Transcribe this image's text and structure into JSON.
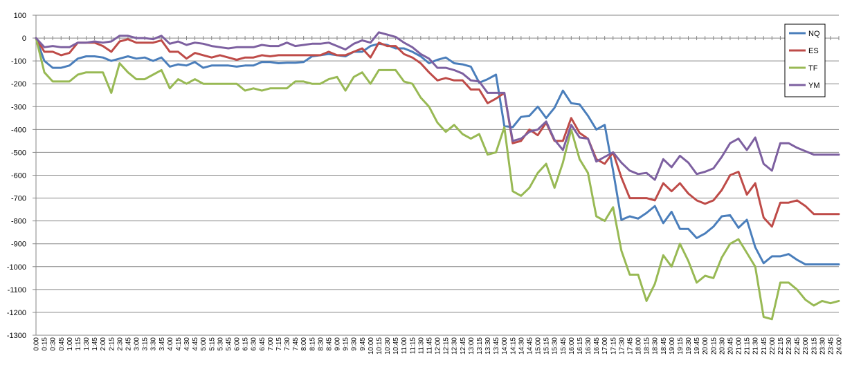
{
  "chart_data": {
    "type": "line",
    "title": "",
    "xlabel": "",
    "ylabel": "",
    "ylim": [
      -1300,
      100
    ],
    "y_ticks": [
      "100",
      "0",
      "-100",
      "-200",
      "-300",
      "-400",
      "-500",
      "-600",
      "-700",
      "-800",
      "-900",
      "-1000",
      "-1100",
      "-1200",
      "-1300"
    ],
    "grid": "horizontal",
    "legend_position": "right",
    "categories": [
      "0:00",
      "0:15",
      "0:30",
      "0:45",
      "1:00",
      "1:15",
      "1:30",
      "1:45",
      "2:00",
      "2:15",
      "2:30",
      "2:45",
      "3:00",
      "3:15",
      "3:30",
      "3:45",
      "4:00",
      "4:15",
      "4:30",
      "4:45",
      "5:00",
      "5:15",
      "5:30",
      "5:45",
      "6:00",
      "6:15",
      "6:30",
      "6:45",
      "7:00",
      "7:15",
      "7:30",
      "7:45",
      "8:00",
      "8:15",
      "8:30",
      "8:45",
      "9:00",
      "9:15",
      "9:30",
      "9:45",
      "10:00",
      "10:15",
      "10:30",
      "10:45",
      "11:00",
      "11:15",
      "11:30",
      "11:45",
      "12:00",
      "12:15",
      "12:30",
      "12:45",
      "13:00",
      "13:15",
      "13:30",
      "13:45",
      "14:00",
      "14:15",
      "14:30",
      "14:45",
      "15:00",
      "15:15",
      "15:30",
      "15:45",
      "16:00",
      "16:15",
      "16:30",
      "16:45",
      "17:00",
      "17:15",
      "17:30",
      "17:45",
      "18:00",
      "18:15",
      "18:30",
      "18:45",
      "19:00",
      "19:15",
      "19:30",
      "19:45",
      "20:00",
      "20:15",
      "20:30",
      "20:45",
      "21:00",
      "21:15",
      "21:30",
      "21:45",
      "22:00",
      "22:15",
      "22:30",
      "22:45",
      "23:00",
      "23:15",
      "23:30",
      "23:45",
      "24:00"
    ],
    "series": [
      {
        "name": "NQ",
        "color": "#4A7EBB",
        "values": [
          0,
          -100,
          -130,
          -130,
          -120,
          -90,
          -80,
          -80,
          -85,
          -100,
          -90,
          -80,
          -90,
          -85,
          -100,
          -85,
          -125,
          -115,
          -120,
          -105,
          -130,
          -120,
          -120,
          -120,
          -125,
          -120,
          -120,
          -105,
          -105,
          -110,
          -108,
          -108,
          -105,
          -80,
          -75,
          -70,
          -75,
          -80,
          -60,
          -60,
          -35,
          -25,
          -30,
          -45,
          -45,
          -60,
          -80,
          -110,
          -95,
          -85,
          -110,
          -115,
          -125,
          -195,
          -180,
          -160,
          -385,
          -390,
          -345,
          -340,
          -300,
          -350,
          -305,
          -230,
          -285,
          -290,
          -340,
          -400,
          -380,
          -580,
          -795,
          -780,
          -790,
          -765,
          -735,
          -810,
          -760,
          -835,
          -835,
          -875,
          -855,
          -825,
          -780,
          -775,
          -830,
          -795,
          -915,
          -985,
          -955,
          -955,
          -945,
          -970,
          -990,
          -990,
          -990,
          -990,
          -990
        ]
      },
      {
        "name": "ES",
        "color": "#BE4B48",
        "values": [
          0,
          -60,
          -60,
          -75,
          -65,
          -20,
          -20,
          -20,
          -35,
          -60,
          -15,
          -5,
          -20,
          -20,
          -20,
          -10,
          -60,
          -60,
          -90,
          -65,
          -75,
          -85,
          -75,
          -85,
          -95,
          -85,
          -85,
          -75,
          -80,
          -75,
          -75,
          -75,
          -75,
          -75,
          -75,
          -60,
          -75,
          -75,
          -60,
          -45,
          -85,
          -20,
          -35,
          -35,
          -70,
          -85,
          -110,
          -150,
          -185,
          -175,
          -185,
          -185,
          -225,
          -225,
          -285,
          -265,
          -240,
          -460,
          -450,
          -400,
          -425,
          -370,
          -450,
          -450,
          -350,
          -415,
          -440,
          -530,
          -550,
          -500,
          -610,
          -700,
          -700,
          -700,
          -710,
          -635,
          -670,
          -635,
          -680,
          -710,
          -725,
          -710,
          -665,
          -600,
          -585,
          -685,
          -635,
          -785,
          -825,
          -720,
          -720,
          -710,
          -735,
          -770,
          -770,
          -770,
          -770
        ]
      },
      {
        "name": "TF",
        "color": "#98B954",
        "values": [
          0,
          -150,
          -190,
          -190,
          -190,
          -160,
          -150,
          -150,
          -150,
          -240,
          -110,
          -150,
          -180,
          -180,
          -160,
          -140,
          -220,
          -180,
          -200,
          -180,
          -200,
          -200,
          -200,
          -200,
          -200,
          -230,
          -220,
          -230,
          -220,
          -220,
          -220,
          -190,
          -190,
          -200,
          -200,
          -180,
          -170,
          -230,
          -170,
          -150,
          -200,
          -140,
          -140,
          -140,
          -190,
          -200,
          -260,
          -300,
          -370,
          -410,
          -380,
          -420,
          -440,
          -420,
          -510,
          -500,
          -390,
          -670,
          -690,
          -655,
          -590,
          -550,
          -655,
          -545,
          -400,
          -530,
          -590,
          -780,
          -800,
          -740,
          -930,
          -1035,
          -1035,
          -1150,
          -1075,
          -950,
          -1000,
          -900,
          -975,
          -1070,
          -1040,
          -1050,
          -960,
          -900,
          -880,
          -940,
          -1000,
          -1220,
          -1230,
          -1070,
          -1070,
          -1100,
          -1145,
          -1170,
          -1150,
          -1160,
          -1150
        ]
      },
      {
        "name": "YM",
        "color": "#7D60A0",
        "values": [
          0,
          -40,
          -35,
          -40,
          -40,
          -20,
          -20,
          -15,
          -20,
          -15,
          10,
          10,
          0,
          0,
          -5,
          10,
          -25,
          -15,
          -30,
          -20,
          -25,
          -35,
          -40,
          -45,
          -40,
          -40,
          -40,
          -30,
          -35,
          -35,
          -20,
          -35,
          -30,
          -25,
          -25,
          -20,
          -35,
          -50,
          -25,
          -10,
          -20,
          25,
          15,
          5,
          -20,
          -40,
          -70,
          -90,
          -130,
          -130,
          -140,
          -155,
          -185,
          -190,
          -240,
          -240,
          -240,
          -450,
          -440,
          -410,
          -400,
          -365,
          -445,
          -490,
          -380,
          -435,
          -440,
          -540,
          -520,
          -500,
          -545,
          -580,
          -595,
          -590,
          -620,
          -530,
          -565,
          -515,
          -545,
          -595,
          -585,
          -570,
          -520,
          -460,
          -440,
          -490,
          -435,
          -550,
          -580,
          -460,
          -460,
          -480,
          -495,
          -510,
          -510,
          -510,
          -510
        ]
      }
    ]
  }
}
